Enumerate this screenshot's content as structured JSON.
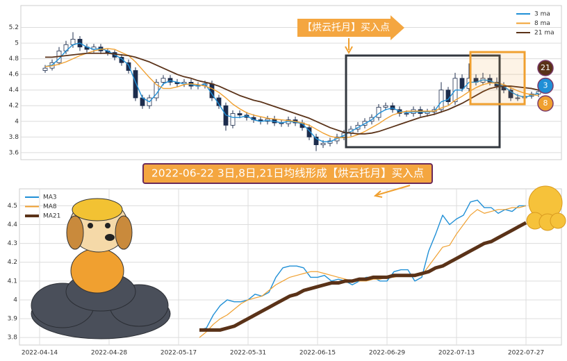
{
  "chart_data": [
    {
      "type": "candlestick",
      "ylim": [
        3.51,
        5.48
      ],
      "yticks": [
        3.6,
        3.8,
        4.0,
        4.2,
        4.4,
        4.6,
        4.8,
        5.0,
        5.2
      ],
      "grid": true,
      "legend": "upper right",
      "up_color": "#ffffff",
      "down_color": "#1c2c4c",
      "ohlc": [
        [
          4.65,
          4.72,
          4.62,
          4.68
        ],
        [
          4.68,
          4.79,
          4.65,
          4.75
        ],
        [
          4.75,
          4.95,
          4.72,
          4.9
        ],
        [
          4.9,
          5.03,
          4.86,
          4.98
        ],
        [
          4.98,
          5.14,
          4.94,
          5.05
        ],
        [
          5.05,
          5.09,
          4.9,
          4.95
        ],
        [
          4.95,
          4.99,
          4.88,
          4.92
        ],
        [
          4.92,
          4.99,
          4.88,
          4.95
        ],
        [
          4.95,
          4.99,
          4.86,
          4.9
        ],
        [
          4.9,
          4.93,
          4.84,
          4.88
        ],
        [
          4.88,
          4.91,
          4.78,
          4.82
        ],
        [
          4.82,
          4.86,
          4.71,
          4.75
        ],
        [
          4.75,
          4.79,
          4.61,
          4.65
        ],
        [
          4.65,
          4.69,
          4.26,
          4.3
        ],
        [
          4.3,
          4.34,
          4.16,
          4.2
        ],
        [
          4.2,
          4.34,
          4.16,
          4.3
        ],
        [
          4.3,
          4.54,
          4.26,
          4.5
        ],
        [
          4.5,
          4.59,
          4.46,
          4.55
        ],
        [
          4.55,
          4.59,
          4.46,
          4.5
        ],
        [
          4.5,
          4.54,
          4.44,
          4.48
        ],
        [
          4.48,
          4.54,
          4.44,
          4.5
        ],
        [
          4.5,
          4.54,
          4.41,
          4.45
        ],
        [
          4.45,
          4.5,
          4.41,
          4.46
        ],
        [
          4.46,
          4.52,
          4.42,
          4.48
        ],
        [
          4.48,
          4.52,
          4.26,
          4.3
        ],
        [
          4.3,
          4.34,
          4.16,
          4.2
        ],
        [
          4.2,
          4.24,
          3.88,
          3.95
        ],
        [
          3.95,
          4.14,
          3.91,
          4.1
        ],
        [
          4.1,
          4.14,
          4.04,
          4.08
        ],
        [
          4.08,
          4.12,
          4.01,
          4.05
        ],
        [
          4.05,
          4.09,
          3.98,
          4.02
        ],
        [
          4.02,
          4.06,
          3.96,
          4.0
        ],
        [
          4.0,
          4.07,
          3.96,
          4.03
        ],
        [
          4.03,
          4.07,
          3.94,
          3.98
        ],
        [
          3.98,
          4.02,
          3.93,
          3.97
        ],
        [
          3.97,
          4.06,
          3.93,
          4.02
        ],
        [
          4.02,
          4.06,
          3.94,
          3.98
        ],
        [
          3.98,
          4.02,
          3.88,
          3.92
        ],
        [
          3.92,
          3.96,
          3.76,
          3.8
        ],
        [
          3.8,
          3.84,
          3.62,
          3.7
        ],
        [
          3.7,
          3.76,
          3.66,
          3.72
        ],
        [
          3.72,
          3.79,
          3.68,
          3.75
        ],
        [
          3.75,
          3.84,
          3.71,
          3.8
        ],
        [
          3.8,
          3.89,
          3.76,
          3.85
        ],
        [
          3.85,
          3.94,
          3.81,
          3.9
        ],
        [
          3.9,
          3.99,
          3.86,
          3.95
        ],
        [
          3.95,
          4.04,
          3.91,
          4.0
        ],
        [
          4.0,
          4.09,
          3.96,
          4.05
        ],
        [
          4.05,
          4.22,
          4.01,
          4.18
        ],
        [
          4.18,
          4.24,
          4.14,
          4.2
        ],
        [
          4.2,
          4.24,
          4.11,
          4.15
        ],
        [
          4.15,
          4.19,
          4.06,
          4.1
        ],
        [
          4.1,
          4.14,
          4.06,
          4.1
        ],
        [
          4.1,
          4.19,
          4.06,
          4.15
        ],
        [
          4.15,
          4.19,
          4.06,
          4.1
        ],
        [
          4.1,
          4.16,
          4.06,
          4.12
        ],
        [
          4.12,
          4.19,
          4.08,
          4.15
        ],
        [
          4.15,
          4.5,
          4.11,
          4.4
        ],
        [
          4.4,
          4.44,
          4.21,
          4.25
        ],
        [
          4.25,
          4.62,
          4.21,
          4.55
        ],
        [
          4.55,
          4.6,
          4.38,
          4.42
        ],
        [
          4.42,
          4.74,
          4.38,
          4.55
        ],
        [
          4.55,
          4.6,
          4.46,
          4.5
        ],
        [
          4.5,
          4.62,
          4.46,
          4.55
        ],
        [
          4.55,
          4.6,
          4.46,
          4.5
        ],
        [
          4.5,
          4.56,
          4.41,
          4.45
        ],
        [
          4.45,
          4.5,
          4.36,
          4.4
        ],
        [
          4.4,
          4.44,
          4.26,
          4.3
        ],
        [
          4.3,
          4.35,
          4.26,
          4.3
        ],
        [
          4.3,
          4.36,
          4.27,
          4.32
        ],
        [
          4.32,
          4.38,
          4.29,
          4.35
        ],
        [
          4.35,
          4.41,
          4.31,
          4.38
        ]
      ],
      "series": [
        {
          "name": "3 ma",
          "color": "#1f8fd6",
          "values": [
            4.7,
            4.72,
            4.8,
            4.9,
            4.98,
            5.0,
            4.95,
            4.92,
            4.93,
            4.9,
            4.85,
            4.8,
            4.72,
            4.5,
            4.3,
            4.25,
            4.35,
            4.48,
            4.52,
            4.5,
            4.48,
            4.47,
            4.45,
            4.48,
            4.35,
            4.22,
            4.08,
            4.05,
            4.05,
            4.07,
            4.02,
            4.0,
            4.01,
            4.0,
            3.98,
            4.0,
            3.99,
            3.97,
            3.88,
            3.78,
            3.74,
            3.74,
            3.78,
            3.82,
            3.87,
            3.92,
            3.97,
            4.02,
            4.1,
            4.15,
            4.17,
            4.13,
            4.11,
            4.12,
            4.12,
            4.12,
            4.13,
            4.25,
            4.28,
            4.4,
            4.4,
            4.5,
            4.5,
            4.53,
            4.52,
            4.48,
            4.45,
            4.38,
            4.33,
            4.31,
            4.33,
            4.36
          ]
        },
        {
          "name": "8 ma",
          "color": "#f0a030",
          "values": [
            4.7,
            4.71,
            4.73,
            4.76,
            4.8,
            4.84,
            4.87,
            4.9,
            4.92,
            4.93,
            4.92,
            4.88,
            4.84,
            4.76,
            4.66,
            4.56,
            4.47,
            4.42,
            4.42,
            4.44,
            4.47,
            4.48,
            4.47,
            4.45,
            4.42,
            4.37,
            4.3,
            4.22,
            4.16,
            4.11,
            4.08,
            4.06,
            4.04,
            4.03,
            4.02,
            4.01,
            4.0,
            3.98,
            3.95,
            3.9,
            3.85,
            3.81,
            3.79,
            3.79,
            3.8,
            3.83,
            3.87,
            3.92,
            3.97,
            4.03,
            4.08,
            4.11,
            4.13,
            4.13,
            4.13,
            4.13,
            4.13,
            4.17,
            4.2,
            4.27,
            4.32,
            4.38,
            4.43,
            4.47,
            4.49,
            4.49,
            4.47,
            4.43,
            4.39,
            4.36,
            4.34,
            4.33
          ]
        },
        {
          "name": "21 ma",
          "color": "#5a3218",
          "values": [
            4.82,
            4.82,
            4.83,
            4.84,
            4.85,
            4.86,
            4.87,
            4.87,
            4.87,
            4.87,
            4.86,
            4.85,
            4.84,
            4.82,
            4.79,
            4.76,
            4.72,
            4.68,
            4.64,
            4.6,
            4.57,
            4.55,
            4.52,
            4.5,
            4.48,
            4.45,
            4.41,
            4.37,
            4.33,
            4.3,
            4.27,
            4.25,
            4.22,
            4.19,
            4.16,
            4.13,
            4.1,
            4.07,
            4.04,
            4.0,
            3.96,
            3.92,
            3.89,
            3.86,
            3.85,
            3.84,
            3.84,
            3.85,
            3.87,
            3.9,
            3.93,
            3.96,
            3.99,
            4.02,
            4.05,
            4.07,
            4.09,
            4.12,
            4.15,
            4.19,
            4.23,
            4.28,
            4.33,
            4.38,
            4.42,
            4.44,
            4.45,
            4.45,
            4.44,
            4.43,
            4.42,
            4.4
          ]
        }
      ],
      "annotation": "【烘云托月】买入点",
      "badges": [
        "21",
        "3",
        "8"
      ]
    },
    {
      "type": "line",
      "title": "2022-06-22 3日,8日,21日均线形成【烘云托月】买入点",
      "ylim": [
        3.76,
        4.59
      ],
      "yticks": [
        3.8,
        3.9,
        4.0,
        4.1,
        4.2,
        4.3,
        4.4,
        4.5
      ],
      "grid": true,
      "legend": "upper left",
      "categories": [
        "2022-04-14",
        null,
        null,
        null,
        null,
        null,
        null,
        null,
        null,
        null,
        "2022-04-28",
        null,
        null,
        null,
        null,
        null,
        null,
        null,
        null,
        null,
        "2022-05-17",
        null,
        null,
        null,
        null,
        null,
        null,
        null,
        null,
        null,
        "2022-05-31",
        null,
        null,
        null,
        null,
        null,
        null,
        null,
        null,
        null,
        "2022-06-15",
        null,
        null,
        null,
        null,
        null,
        null,
        null,
        null,
        null,
        "2022-06-29",
        null,
        null,
        null,
        null,
        null,
        null,
        null,
        null,
        null,
        "2022-07-13",
        null,
        null,
        null,
        null,
        null,
        null,
        null,
        null,
        null,
        "2022-07-27",
        null
      ],
      "series": [
        {
          "name": "MA3",
          "color": "#1f8fd6",
          "values": [
            null,
            null,
            null,
            null,
            null,
            null,
            null,
            null,
            null,
            null,
            null,
            null,
            null,
            null,
            null,
            null,
            null,
            null,
            null,
            null,
            null,
            null,
            null,
            3.84,
            3.85,
            3.92,
            3.97,
            4.0,
            3.99,
            3.99,
            4.0,
            4.03,
            4.02,
            4.04,
            4.12,
            4.17,
            4.18,
            4.18,
            4.17,
            4.12,
            4.12,
            4.13,
            4.1,
            4.11,
            4.1,
            4.08,
            4.1,
            4.12,
            4.12,
            4.1,
            4.1,
            4.15,
            4.16,
            4.16,
            4.1,
            4.12,
            4.26,
            4.35,
            4.45,
            4.4,
            4.43,
            4.45,
            4.52,
            4.53,
            4.49,
            4.49,
            4.46,
            4.48,
            4.47,
            4.5,
            4.5,
            null
          ]
        },
        {
          "name": "MA8",
          "color": "#f0a030",
          "values": [
            null,
            null,
            null,
            null,
            null,
            null,
            null,
            null,
            null,
            null,
            null,
            null,
            null,
            null,
            null,
            null,
            null,
            null,
            null,
            null,
            null,
            null,
            null,
            3.8,
            3.83,
            3.87,
            3.9,
            3.92,
            3.95,
            3.98,
            4.0,
            4.01,
            4.02,
            4.05,
            4.08,
            4.1,
            4.12,
            4.13,
            4.14,
            4.15,
            4.15,
            4.14,
            4.13,
            4.12,
            4.11,
            4.1,
            4.1,
            4.1,
            4.11,
            4.11,
            4.12,
            4.12,
            4.13,
            4.13,
            4.13,
            4.13,
            4.18,
            4.23,
            4.28,
            4.29,
            4.35,
            4.4,
            4.45,
            4.48,
            4.46,
            4.47,
            4.48,
            4.48,
            4.49,
            4.49,
            4.5,
            null
          ]
        },
        {
          "name": "MA21",
          "color": "#5a3218",
          "values": [
            null,
            null,
            null,
            null,
            null,
            null,
            null,
            null,
            null,
            null,
            null,
            null,
            null,
            null,
            null,
            null,
            null,
            null,
            null,
            null,
            null,
            null,
            null,
            3.84,
            3.84,
            3.84,
            3.84,
            3.85,
            3.86,
            3.88,
            3.9,
            3.92,
            3.94,
            3.96,
            3.98,
            4.0,
            4.02,
            4.03,
            4.05,
            4.06,
            4.07,
            4.08,
            4.09,
            4.09,
            4.1,
            4.1,
            4.11,
            4.11,
            4.12,
            4.12,
            4.12,
            4.13,
            4.13,
            4.13,
            4.13,
            4.14,
            4.15,
            4.17,
            4.18,
            4.2,
            4.22,
            4.24,
            4.26,
            4.28,
            4.3,
            4.31,
            4.33,
            4.35,
            4.37,
            4.39,
            4.41,
            null
          ]
        }
      ]
    }
  ]
}
